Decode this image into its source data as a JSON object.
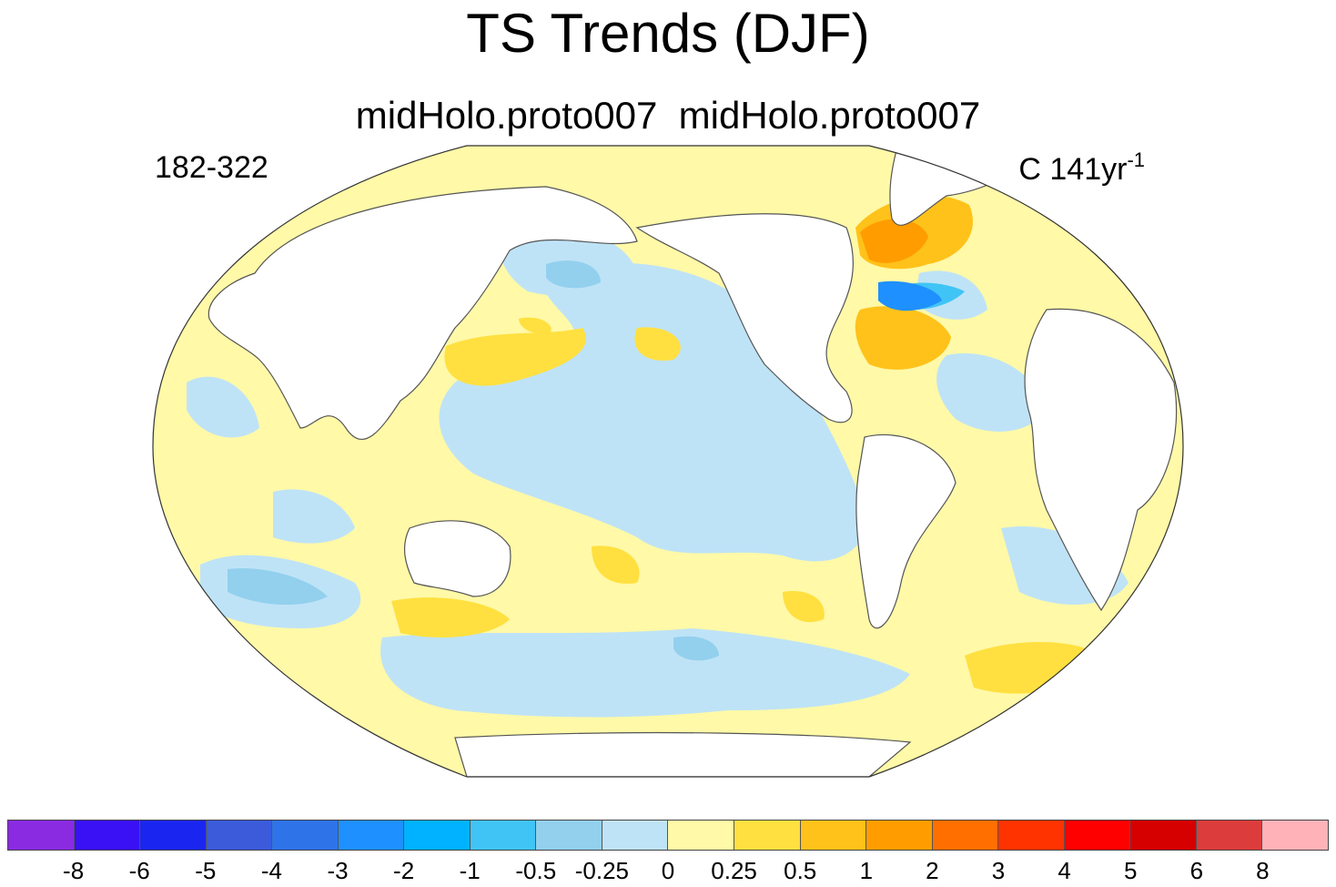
{
  "title": "TS Trends (DJF)",
  "subtitle": "midHolo.proto007  midHolo.proto007",
  "left_label": "182-322",
  "right_label": {
    "text": "C 141yr",
    "superscript": "-1"
  },
  "colorbar": {
    "tick_labels": [
      "-8",
      "-6",
      "-5",
      "-4",
      "-3",
      "-2",
      "-1",
      "-0.5",
      "-0.25",
      "0",
      "0.25",
      "0.5",
      "1",
      "2",
      "3",
      "4",
      "5",
      "6",
      "8"
    ],
    "colors": [
      "#8a2be2",
      "#3a10f5",
      "#1a26f0",
      "#3b5bdb",
      "#2f73e8",
      "#1f90ff",
      "#00b2ff",
      "#40c4f6",
      "#93d0ee",
      "#bfe3f6",
      "#fff9a8",
      "#ffe040",
      "#ffc21a",
      "#ff9d00",
      "#ff6f00",
      "#ff3300",
      "#ff0000",
      "#d60000",
      "#dc3c3c",
      "#ffb3b8"
    ]
  },
  "map": {
    "projection": "Robinson",
    "land_color": "#ffffff",
    "coastline_color": "#555555",
    "background_field_color": "#fff9a8"
  }
}
